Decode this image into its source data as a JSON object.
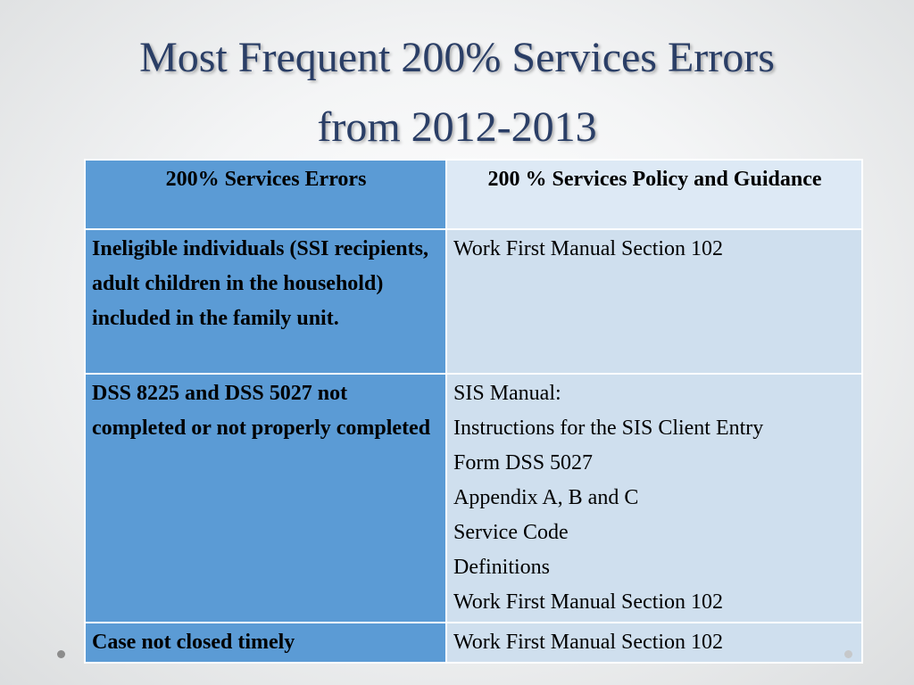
{
  "title": {
    "line1": "Most Frequent 200% Services Errors",
    "line2": "from 2012-2013"
  },
  "table": {
    "headers": [
      "200% Services Errors",
      "200 % Services Policy and Guidance"
    ],
    "rows": [
      {
        "error": "Ineligible individuals (SSI recipients, adult children in the household) included in the family unit.",
        "policy": [
          "Work First Manual Section  102"
        ]
      },
      {
        "error": "DSS 8225 and DSS 5027 not completed or not properly completed",
        "policy": [
          "SIS Manual:",
          "Instructions for the SIS Client Entry",
          "Form DSS 5027",
          "Appendix A, B and C",
          "Service Code",
          "Definitions",
          "Work First Manual Section 102"
        ]
      },
      {
        "error": "Case not closed timely",
        "policy": [
          "Work First Manual Section 102"
        ]
      }
    ]
  },
  "colors": {
    "title": "#2a3e66",
    "left_column": "#5b9bd5",
    "header_right": "#dde9f5",
    "right_column": "#cfdfee"
  }
}
